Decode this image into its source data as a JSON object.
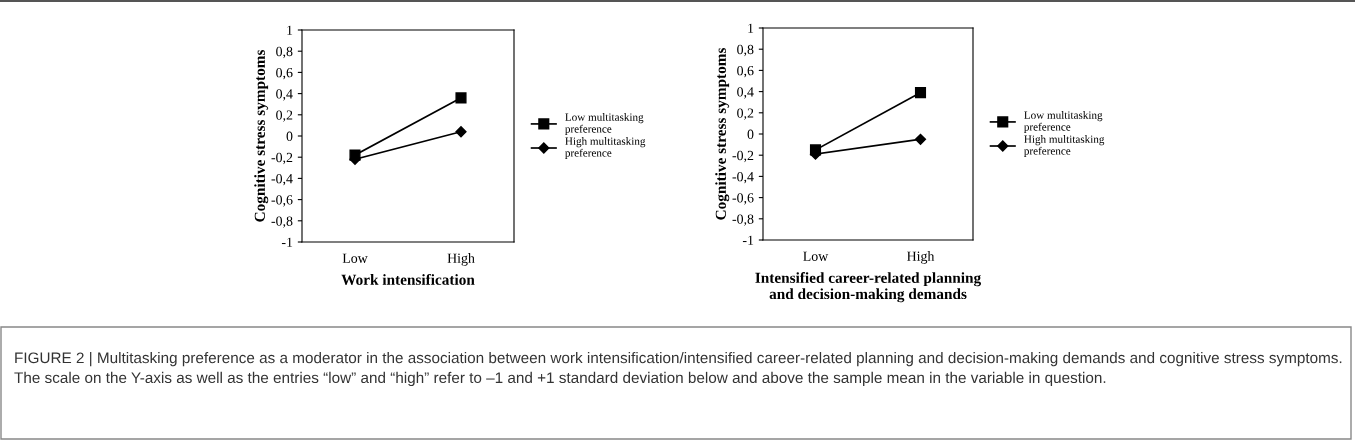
{
  "chart_data": [
    {
      "type": "line",
      "xlabel": "Work intensification",
      "ylabel": "Cognitive stress symptoms",
      "categories": [
        "Low",
        "High"
      ],
      "series": [
        {
          "name": "Low multitasking\npreference",
          "color": "#000000",
          "values": [
            -0.18,
            0.36
          ],
          "marker": "square"
        },
        {
          "name": "High multitasking\npreference",
          "color": "#000000",
          "values": [
            -0.22,
            0.04
          ],
          "marker": "diamond"
        }
      ],
      "ylim": [
        -1,
        1
      ],
      "yticks": [
        {
          "value": -1,
          "label": "-1"
        },
        {
          "value": -0.8,
          "label": "-0,8"
        },
        {
          "value": -0.6,
          "label": "-0,6"
        },
        {
          "value": -0.4,
          "label": "-0,4"
        },
        {
          "value": -0.2,
          "label": "-0,2"
        },
        0,
        {
          "value": 0.2,
          "label": "0,2"
        },
        {
          "value": 0.4,
          "label": "0,4"
        },
        {
          "value": 0.6,
          "label": "0,6"
        },
        {
          "value": 0.8,
          "label": "0,8"
        },
        1
      ],
      "grid": false,
      "legend": "right",
      "line_style": "solid",
      "annotations": [
        "FIGURE 2 | Multitasking preference as a moderator in the association between work intensification/intensified career-related planning and decision-making demands and cognitive stress symptoms. The scale on the Y-axis as well as the entries “low” and “high” refer to –1 and +1 standard deviation below and above the sample mean in the variable in question."
      ]
    },
    {
      "type": "line",
      "xlabel": "Intensified career-related planning\nand decision-making demands",
      "ylabel": "Cognitive stress symptoms",
      "categories": [
        "Low",
        "High"
      ],
      "series": [
        {
          "name": "Low multitasking\npreference",
          "color": "#000000",
          "values": [
            -0.15,
            0.39
          ],
          "marker": "square"
        },
        {
          "name": "High multitasking\npreference",
          "color": "#000000",
          "values": [
            -0.19,
            -0.05
          ],
          "marker": "diamond"
        }
      ],
      "ylim": [
        -1,
        1
      ],
      "yticks": [
        {
          "value": -1,
          "label": "-1"
        },
        {
          "value": -0.8,
          "label": "-0,8"
        },
        {
          "value": -0.6,
          "label": "-0,6"
        },
        {
          "value": -0.4,
          "label": "-0,4"
        },
        {
          "value": -0.2,
          "label": "-0,2"
        },
        0,
        {
          "value": 0.2,
          "label": "0,2"
        },
        {
          "value": 0.4,
          "label": "0,4"
        },
        {
          "value": 0.6,
          "label": "0,6"
        },
        {
          "value": 0.8,
          "label": "0,8"
        },
        1
      ],
      "grid": false,
      "legend": "right",
      "line_style": "solid"
    }
  ]
}
